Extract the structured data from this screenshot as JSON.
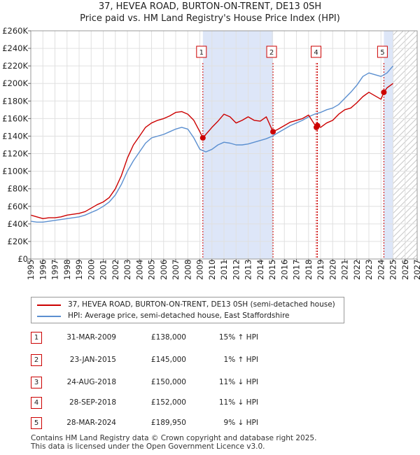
{
  "title_line1": "37, HEVEA ROAD, BURTON-ON-TRENT, DE13 0SH",
  "title_line2": "Price paid vs. HM Land Registry's House Price Index (HPI)",
  "colors": {
    "price": "#cc0000",
    "hpi": "#5b8fd0",
    "shade": "#dde6f8",
    "future_hatch": "#c8c8c8"
  },
  "chart_data": {
    "type": "line",
    "xlim": [
      1995,
      2027
    ],
    "ylim": [
      0,
      260000
    ],
    "y_ticks": [
      0,
      20000,
      40000,
      60000,
      80000,
      100000,
      120000,
      140000,
      160000,
      180000,
      200000,
      220000,
      240000,
      260000
    ],
    "y_tick_labels": [
      "£0",
      "£20K",
      "£40K",
      "£60K",
      "£80K",
      "£100K",
      "£120K",
      "£140K",
      "£160K",
      "£180K",
      "£200K",
      "£220K",
      "£240K",
      "£260K"
    ],
    "x_ticks": [
      1995,
      1996,
      1997,
      1998,
      1999,
      2000,
      2001,
      2002,
      2003,
      2004,
      2005,
      2006,
      2007,
      2008,
      2009,
      2010,
      2011,
      2012,
      2013,
      2014,
      2015,
      2016,
      2017,
      2018,
      2019,
      2020,
      2021,
      2022,
      2023,
      2024,
      2025,
      2026,
      2027
    ],
    "x_tick_labels": [
      "1995",
      "1996",
      "1997",
      "1998",
      "1999",
      "2000",
      "2001",
      "2002",
      "2003",
      "2004",
      "2005",
      "2006",
      "2007",
      "2008",
      "2009",
      "2010",
      "2011",
      "2012",
      "2013",
      "2014",
      "2015",
      "2016",
      "2017",
      "2018",
      "2019",
      "2020",
      "2021",
      "2022",
      "2023",
      "2024",
      "2025",
      "2026",
      "2027"
    ],
    "grid": true,
    "shaded_ranges": [
      [
        2009.25,
        2015.06
      ],
      [
        2024.24,
        2025.0
      ]
    ],
    "future_from": 2025.0,
    "series": [
      {
        "name": "37, HEVEA ROAD, BURTON-ON-TRENT, DE13 0SH (semi-detached house)",
        "x": [
          1995.0,
          1995.5,
          1996.0,
          1996.5,
          1997.0,
          1997.5,
          1998.0,
          1998.5,
          1999.0,
          1999.5,
          2000.0,
          2000.5,
          2001.0,
          2001.5,
          2002.0,
          2002.5,
          2003.0,
          2003.5,
          2004.0,
          2004.5,
          2005.0,
          2005.5,
          2006.0,
          2006.5,
          2007.0,
          2007.5,
          2008.0,
          2008.5,
          2009.0,
          2009.25,
          2009.5,
          2010.0,
          2010.5,
          2011.0,
          2011.5,
          2012.0,
          2012.5,
          2013.0,
          2013.5,
          2014.0,
          2014.5,
          2015.06,
          2015.5,
          2016.0,
          2016.5,
          2017.0,
          2017.5,
          2018.0,
          2018.65,
          2018.74,
          2019.0,
          2019.5,
          2020.0,
          2020.5,
          2021.0,
          2021.5,
          2022.0,
          2022.5,
          2023.0,
          2023.5,
          2024.0,
          2024.24,
          2024.5,
          2025.0
        ],
        "y": [
          50000,
          48000,
          46000,
          47000,
          47000,
          48000,
          50000,
          51000,
          52000,
          54000,
          58000,
          62000,
          65000,
          70000,
          80000,
          95000,
          115000,
          130000,
          140000,
          150000,
          155000,
          158000,
          160000,
          163000,
          167000,
          168000,
          165000,
          158000,
          145000,
          138000,
          142000,
          150000,
          157000,
          165000,
          162000,
          155000,
          158000,
          162000,
          158000,
          157000,
          162000,
          145000,
          148000,
          152000,
          156000,
          158000,
          160000,
          164000,
          150000,
          152000,
          150000,
          155000,
          158000,
          165000,
          170000,
          172000,
          178000,
          185000,
          190000,
          186000,
          182000,
          189950,
          195000,
          200000
        ]
      },
      {
        "name": "HPI: Average price, semi-detached house, East Staffordshire",
        "x": [
          1995.0,
          1995.5,
          1996.0,
          1996.5,
          1997.0,
          1997.5,
          1998.0,
          1998.5,
          1999.0,
          1999.5,
          2000.0,
          2000.5,
          2001.0,
          2001.5,
          2002.0,
          2002.5,
          2003.0,
          2003.5,
          2004.0,
          2004.5,
          2005.0,
          2005.5,
          2006.0,
          2006.5,
          2007.0,
          2007.5,
          2008.0,
          2008.5,
          2009.0,
          2009.5,
          2010.0,
          2010.5,
          2011.0,
          2011.5,
          2012.0,
          2012.5,
          2013.0,
          2013.5,
          2014.0,
          2014.5,
          2015.0,
          2015.5,
          2016.0,
          2016.5,
          2017.0,
          2017.5,
          2018.0,
          2018.5,
          2019.0,
          2019.5,
          2020.0,
          2020.5,
          2021.0,
          2021.5,
          2022.0,
          2022.5,
          2023.0,
          2023.5,
          2024.0,
          2024.5,
          2025.0
        ],
        "y": [
          43000,
          42000,
          42000,
          43000,
          44000,
          45000,
          46000,
          47000,
          48000,
          50000,
          53000,
          56000,
          60000,
          65000,
          73000,
          85000,
          100000,
          112000,
          122000,
          132000,
          138000,
          140000,
          142000,
          145000,
          148000,
          150000,
          148000,
          138000,
          125000,
          122000,
          125000,
          130000,
          133000,
          132000,
          130000,
          130000,
          131000,
          133000,
          135000,
          137000,
          140000,
          144000,
          148000,
          152000,
          155000,
          158000,
          162000,
          165000,
          167000,
          170000,
          172000,
          176000,
          183000,
          190000,
          198000,
          208000,
          212000,
          210000,
          208000,
          212000,
          220000
        ]
      }
    ],
    "sale_markers": [
      {
        "label": "1",
        "x": 2009.25,
        "y": 138000
      },
      {
        "label": "2",
        "x": 2015.06,
        "y": 145000
      },
      {
        "label": "3",
        "x": 2018.65,
        "y": 150000
      },
      {
        "label": "4",
        "x": 2018.74,
        "y": 152000
      },
      {
        "label": "5",
        "x": 2024.24,
        "y": 189950
      }
    ],
    "boxed_markers": [
      "1",
      "2",
      "4",
      "5"
    ]
  },
  "legend": {
    "price_label": "37, HEVEA ROAD, BURTON-ON-TRENT, DE13 0SH (semi-detached house)",
    "hpi_label": "HPI: Average price, semi-detached house, East Staffordshire"
  },
  "transactions": [
    {
      "num": "1",
      "date": "31-MAR-2009",
      "price": "£138,000",
      "hpi": "15% ↑ HPI"
    },
    {
      "num": "2",
      "date": "23-JAN-2015",
      "price": "£145,000",
      "hpi": "1% ↑ HPI"
    },
    {
      "num": "3",
      "date": "24-AUG-2018",
      "price": "£150,000",
      "hpi": "11% ↓ HPI"
    },
    {
      "num": "4",
      "date": "28-SEP-2018",
      "price": "£152,000",
      "hpi": "11% ↓ HPI"
    },
    {
      "num": "5",
      "date": "28-MAR-2024",
      "price": "£189,950",
      "hpi": "9% ↓ HPI"
    }
  ],
  "footer_line1": "Contains HM Land Registry data © Crown copyright and database right 2025.",
  "footer_line2": "This data is licensed under the Open Government Licence v3.0."
}
